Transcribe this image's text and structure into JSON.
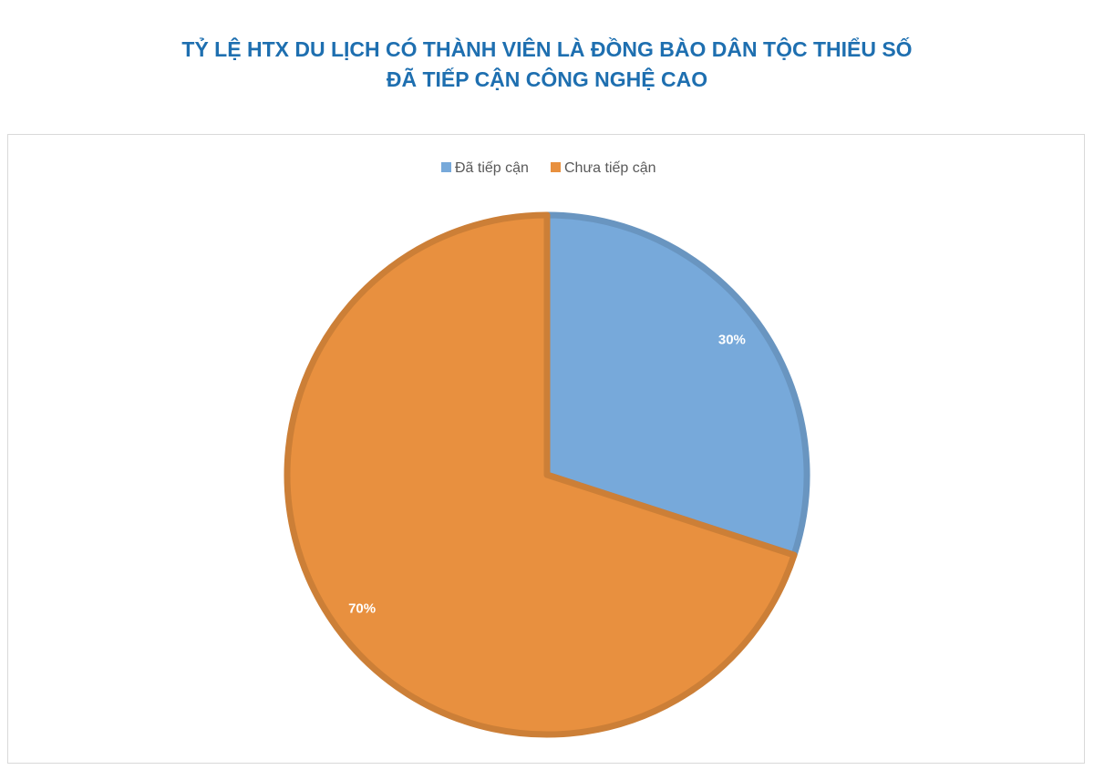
{
  "chart_data": {
    "type": "pie",
    "title": [
      "TỶ LỆ HTX DU LỊCH CÓ THÀNH VIÊN LÀ ĐỒNG BÀO DÂN TỘC THIỂU SỐ",
      "ĐÃ TIẾP CẬN CÔNG NGHỆ CAO"
    ],
    "categories": [
      "Đã tiếp cận",
      "Chưa tiếp cận"
    ],
    "values": [
      30,
      70
    ],
    "value_labels": [
      "30%",
      "70%"
    ],
    "colors": [
      "#77a9da",
      "#e8903f"
    ],
    "legend": "top"
  }
}
